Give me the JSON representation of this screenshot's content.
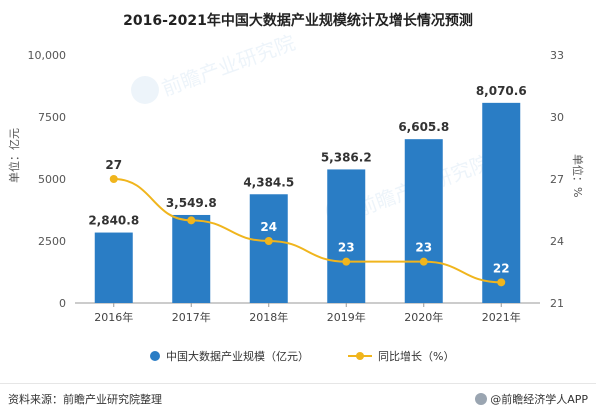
{
  "title": "2016-2021年中国大数据产业规模统计及增长情况预测",
  "left_axis_label": "单位：亿元",
  "right_axis_label": "单位：%",
  "watermark": "前瞻产业研究院",
  "footer": {
    "source": "资料来源：前瞻产业研究院整理",
    "brand": "@前瞻经济学人APP"
  },
  "colors": {
    "bar": "#2a7dc5",
    "line": "#f0b51d",
    "grid": "#e8e8e8"
  },
  "chart_data": {
    "type": "bar",
    "title": "2016-2021年中国大数据产业规模统计及增长情况预测",
    "categories": [
      "2016年",
      "2017年",
      "2018年",
      "2019年",
      "2020年",
      "2021年"
    ],
    "series": [
      {
        "name": "中国大数据产业规模（亿元）",
        "type": "bar",
        "axis": "left",
        "values": [
          2840.8,
          3549.8,
          4384.5,
          5386.2,
          6605.8,
          8070.6
        ],
        "labels": [
          "2,840.8",
          "3,549.8",
          "4,384.5",
          "5,386.2",
          "6,605.8",
          "8,070.6"
        ]
      },
      {
        "name": "同比增长（%）",
        "type": "line",
        "axis": "right",
        "values": [
          27,
          25,
          24,
          23,
          23,
          22
        ],
        "labels": [
          "27",
          "",
          "24",
          "23",
          "23",
          "22"
        ]
      }
    ],
    "ylim_left": [
      0,
      10000
    ],
    "yticks_left": [
      "0",
      "2500",
      "5000",
      "7500",
      "10,000"
    ],
    "ylim_right": [
      21,
      33
    ],
    "yticks_right": [
      "21",
      "24",
      "27",
      "30",
      "33"
    ],
    "grid": false,
    "legend": "bottom"
  }
}
